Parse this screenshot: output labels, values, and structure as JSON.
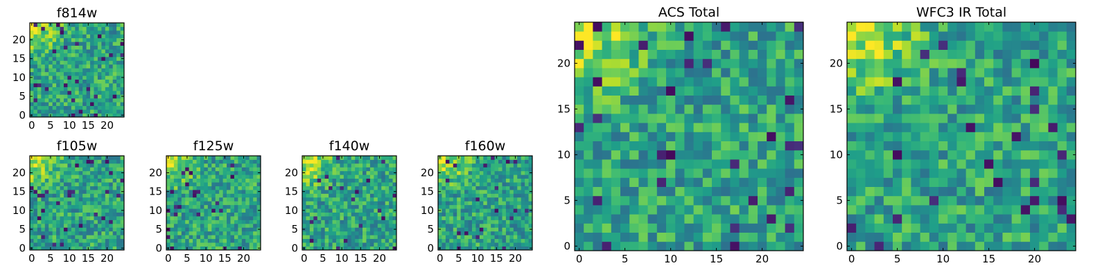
{
  "chart_data": [
    {
      "type": "heatmap",
      "title": "f814w",
      "grid_size": 25,
      "xlim": [
        0,
        24
      ],
      "ylim": [
        0,
        24
      ],
      "x_ticks": [
        0,
        5,
        10,
        15,
        20
      ],
      "y_ticks": [
        0,
        5,
        10,
        15,
        20
      ],
      "colormap": "viridis",
      "bright_region": "top-left",
      "seed": 11
    },
    {
      "type": "heatmap",
      "title": "f105w",
      "grid_size": 25,
      "xlim": [
        0,
        24
      ],
      "ylim": [
        0,
        24
      ],
      "x_ticks": [
        0,
        5,
        10,
        15,
        20
      ],
      "y_ticks": [
        0,
        5,
        10,
        15,
        20
      ],
      "colormap": "viridis",
      "bright_region": "top-left",
      "seed": 23
    },
    {
      "type": "heatmap",
      "title": "f125w",
      "grid_size": 25,
      "xlim": [
        0,
        24
      ],
      "ylim": [
        0,
        24
      ],
      "x_ticks": [
        0,
        5,
        10,
        15,
        20
      ],
      "y_ticks": [
        0,
        5,
        10,
        15,
        20
      ],
      "colormap": "viridis",
      "bright_region": "top-left",
      "seed": 37
    },
    {
      "type": "heatmap",
      "title": "f140w",
      "grid_size": 25,
      "xlim": [
        0,
        24
      ],
      "ylim": [
        0,
        24
      ],
      "x_ticks": [
        0,
        5,
        10,
        15,
        20
      ],
      "y_ticks": [
        0,
        5,
        10,
        15,
        20
      ],
      "colormap": "viridis",
      "bright_region": "top-left",
      "seed": 41
    },
    {
      "type": "heatmap",
      "title": "f160w",
      "grid_size": 25,
      "xlim": [
        0,
        24
      ],
      "ylim": [
        0,
        24
      ],
      "x_ticks": [
        0,
        5,
        10,
        15,
        20
      ],
      "y_ticks": [
        0,
        5,
        10,
        15,
        20
      ],
      "colormap": "viridis",
      "bright_region": "top-left",
      "seed": 53
    },
    {
      "type": "heatmap",
      "title": "ACS Total",
      "grid_size": 25,
      "xlim": [
        0,
        24
      ],
      "ylim": [
        0,
        24
      ],
      "x_ticks": [
        0,
        5,
        10,
        15,
        20
      ],
      "y_ticks": [
        0,
        5,
        10,
        15,
        20
      ],
      "colormap": "viridis",
      "bright_region": "top-left",
      "seed": 67
    },
    {
      "type": "heatmap",
      "title": "WFC3 IR Total",
      "grid_size": 25,
      "xlim": [
        0,
        24
      ],
      "ylim": [
        0,
        24
      ],
      "x_ticks": [
        0,
        5,
        10,
        15,
        20
      ],
      "y_ticks": [
        0,
        5,
        10,
        15,
        20
      ],
      "colormap": "viridis",
      "bright_region": "top-left",
      "seed": 79
    }
  ]
}
